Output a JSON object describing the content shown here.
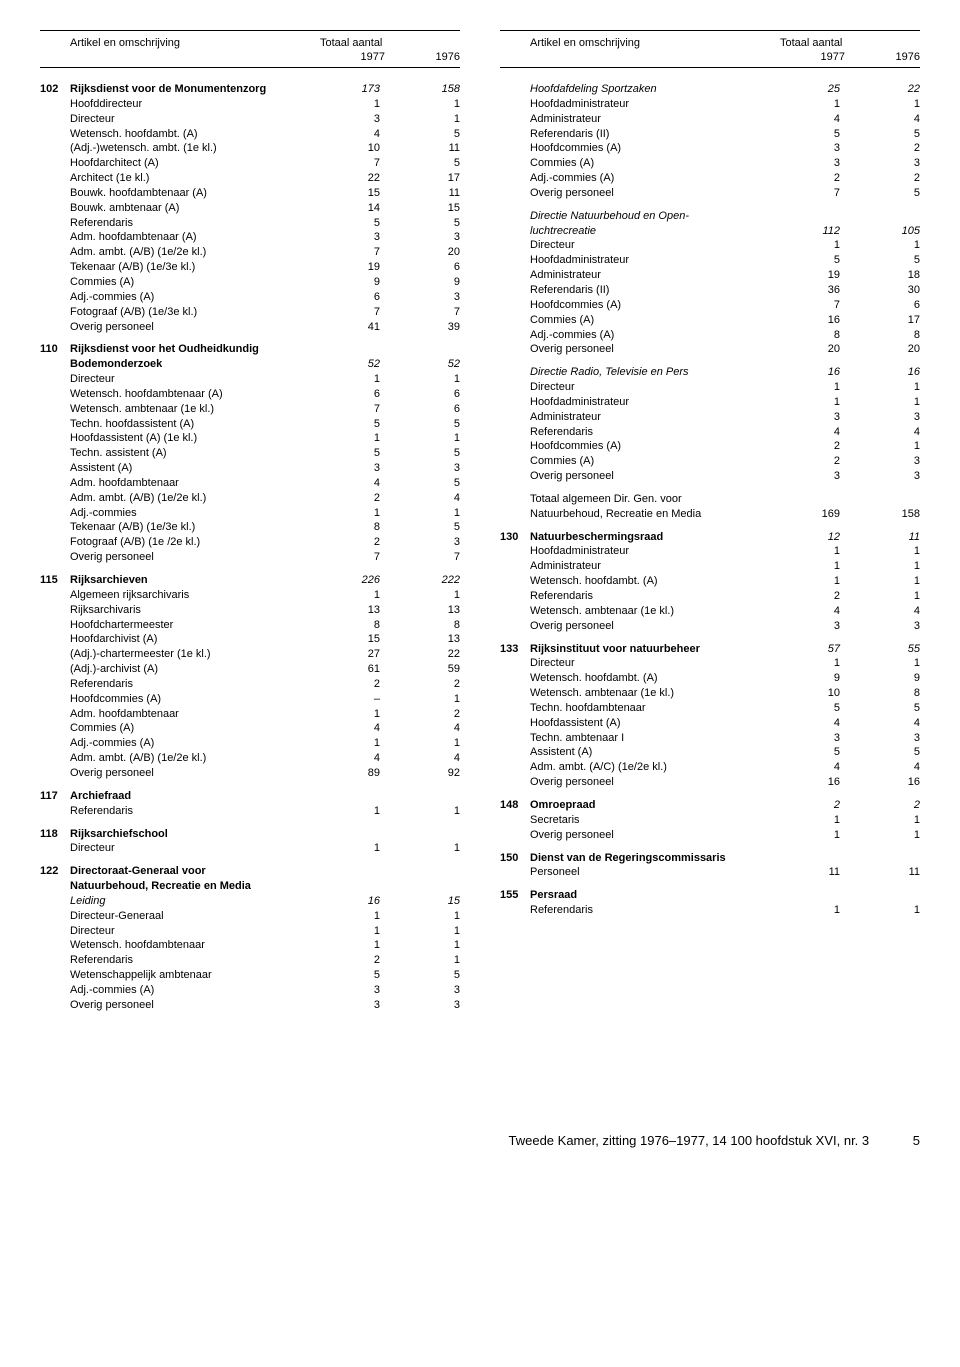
{
  "header": {
    "col_title": "Artikel en omschrijving",
    "totaal_title": "Totaal aantal",
    "year1": "1977",
    "year2": "1976"
  },
  "left": [
    {
      "type": "section",
      "code": "102",
      "label": "Rijksdienst voor de Monumentenzorg",
      "italic": true,
      "v1": "173",
      "v2": "158"
    },
    {
      "type": "row",
      "label": "Hoofddirecteur",
      "v1": "1",
      "v2": "1"
    },
    {
      "type": "row",
      "label": "Directeur",
      "v1": "3",
      "v2": "1"
    },
    {
      "type": "row",
      "label": "Wetensch. hoofdambt. (A)",
      "v1": "4",
      "v2": "5"
    },
    {
      "type": "row",
      "label": "(Adj.-)wetensch. ambt. (1e kl.)",
      "v1": "10",
      "v2": "11"
    },
    {
      "type": "row",
      "label": "Hoofdarchitect (A)",
      "v1": "7",
      "v2": "5"
    },
    {
      "type": "row",
      "label": "Architect (1e kl.)",
      "v1": "22",
      "v2": "17"
    },
    {
      "type": "row",
      "label": "Bouwk. hoofdambtenaar (A)",
      "v1": "15",
      "v2": "11"
    },
    {
      "type": "row",
      "label": "Bouwk. ambtenaar (A)",
      "v1": "14",
      "v2": "15"
    },
    {
      "type": "row",
      "label": "Referendaris",
      "v1": "5",
      "v2": "5"
    },
    {
      "type": "row",
      "label": "Adm. hoofdambtenaar (A)",
      "v1": "3",
      "v2": "3"
    },
    {
      "type": "row",
      "label": "Adm. ambt. (A/B) (1e/2e kl.)",
      "v1": "7",
      "v2": "20"
    },
    {
      "type": "row",
      "label": "Tekenaar (A/B) (1e/3e kl.)",
      "v1": "19",
      "v2": "6"
    },
    {
      "type": "row",
      "label": "Commies (A)",
      "v1": "9",
      "v2": "9"
    },
    {
      "type": "row",
      "label": "Adj.-commies (A)",
      "v1": "6",
      "v2": "3"
    },
    {
      "type": "row",
      "label": "Fotograaf (A/B) (1e/3e kl.)",
      "v1": "7",
      "v2": "7"
    },
    {
      "type": "row",
      "label": "Overig personeel",
      "v1": "41",
      "v2": "39"
    },
    {
      "type": "spacer"
    },
    {
      "type": "section",
      "code": "110",
      "label": "Rijksdienst voor het Oudheidkundig",
      "v1": "",
      "v2": ""
    },
    {
      "type": "section",
      "code": "",
      "label": "Bodemonderzoek",
      "italic": true,
      "v1": "52",
      "v2": "52"
    },
    {
      "type": "row",
      "label": "Directeur",
      "v1": "1",
      "v2": "1"
    },
    {
      "type": "row",
      "label": "Wetensch. hoofdambtenaar (A)",
      "v1": "6",
      "v2": "6"
    },
    {
      "type": "row",
      "label": "Wetensch. ambtenaar (1e kl.)",
      "v1": "7",
      "v2": "6"
    },
    {
      "type": "row",
      "label": "Techn. hoofdassistent (A)",
      "v1": "5",
      "v2": "5"
    },
    {
      "type": "row",
      "label": "Hoofdassistent (A) (1e kl.)",
      "v1": "1",
      "v2": "1"
    },
    {
      "type": "row",
      "label": "Techn. assistent (A)",
      "v1": "5",
      "v2": "5"
    },
    {
      "type": "row",
      "label": "Assistent (A)",
      "v1": "3",
      "v2": "3"
    },
    {
      "type": "row",
      "label": "Adm. hoofdambtenaar",
      "v1": "4",
      "v2": "5"
    },
    {
      "type": "row",
      "label": "Adm. ambt. (A/B) (1e/2e kl.)",
      "v1": "2",
      "v2": "4"
    },
    {
      "type": "row",
      "label": "Adj.-commies",
      "v1": "1",
      "v2": "1"
    },
    {
      "type": "row",
      "label": "Tekenaar (A/B) (1e/3e kl.)",
      "v1": "8",
      "v2": "5"
    },
    {
      "type": "row",
      "label": "Fotograaf (A/B) (1e /2e kl.)",
      "v1": "2",
      "v2": "3"
    },
    {
      "type": "row",
      "label": "Overig personeel",
      "v1": "7",
      "v2": "7"
    },
    {
      "type": "spacer"
    },
    {
      "type": "section",
      "code": "115",
      "label": "Rijksarchieven",
      "italic": true,
      "v1": "226",
      "v2": "222"
    },
    {
      "type": "row",
      "label": "Algemeen rijksarchivaris",
      "v1": "1",
      "v2": "1"
    },
    {
      "type": "row",
      "label": "Rijksarchivaris",
      "v1": "13",
      "v2": "13"
    },
    {
      "type": "row",
      "label": "Hoofdchartermeester",
      "v1": "8",
      "v2": "8"
    },
    {
      "type": "row",
      "label": "Hoofdarchivist (A)",
      "v1": "15",
      "v2": "13"
    },
    {
      "type": "row",
      "label": "(Adj.)-chartermeester (1e kl.)",
      "v1": "27",
      "v2": "22"
    },
    {
      "type": "row",
      "label": "(Adj.)-archivist (A)",
      "v1": "61",
      "v2": "59"
    },
    {
      "type": "row",
      "label": "Referendaris",
      "v1": "2",
      "v2": "2"
    },
    {
      "type": "row",
      "label": "Hoofdcommies (A)",
      "v1": "–",
      "v2": "1"
    },
    {
      "type": "row",
      "label": "Adm. hoofdambtenaar",
      "v1": "1",
      "v2": "2"
    },
    {
      "type": "row",
      "label": "Commies (A)",
      "v1": "4",
      "v2": "4"
    },
    {
      "type": "row",
      "label": "Adj.-commies (A)",
      "v1": "1",
      "v2": "1"
    },
    {
      "type": "row",
      "label": "Adm. ambt. (A/B) (1e/2e kl.)",
      "v1": "4",
      "v2": "4"
    },
    {
      "type": "row",
      "label": "Overig personeel",
      "v1": "89",
      "v2": "92"
    },
    {
      "type": "spacer"
    },
    {
      "type": "section",
      "code": "117",
      "label": "Archiefraad",
      "v1": "",
      "v2": ""
    },
    {
      "type": "row",
      "label": "Referendaris",
      "v1": "1",
      "v2": "1"
    },
    {
      "type": "spacer"
    },
    {
      "type": "section",
      "code": "118",
      "label": "Rijksarchiefschool",
      "v1": "",
      "v2": ""
    },
    {
      "type": "row",
      "label": "Directeur",
      "v1": "1",
      "v2": "1"
    },
    {
      "type": "spacer"
    },
    {
      "type": "section",
      "code": "122",
      "label": "Directoraat-Generaal voor",
      "v1": "",
      "v2": ""
    },
    {
      "type": "section",
      "code": "",
      "label": "Natuurbehoud, Recreatie en Media",
      "v1": "",
      "v2": ""
    },
    {
      "type": "subitalic",
      "label": "Leiding",
      "v1": "16",
      "v2": "15"
    },
    {
      "type": "row",
      "label": "Directeur-Generaal",
      "v1": "1",
      "v2": "1"
    },
    {
      "type": "row",
      "label": "Directeur",
      "v1": "1",
      "v2": "1"
    },
    {
      "type": "row",
      "label": "Wetensch. hoofdambtenaar",
      "v1": "1",
      "v2": "1"
    },
    {
      "type": "row",
      "label": "Referendaris",
      "v1": "2",
      "v2": "1"
    },
    {
      "type": "row",
      "label": "Wetenschappelijk ambtenaar",
      "v1": "5",
      "v2": "5"
    },
    {
      "type": "row",
      "label": "Adj.-commies (A)",
      "v1": "3",
      "v2": "3"
    },
    {
      "type": "row",
      "label": "Overig personeel",
      "v1": "3",
      "v2": "3"
    }
  ],
  "right": [
    {
      "type": "subitalic",
      "label": "Hoofdafdeling Sportzaken",
      "v1": "25",
      "v2": "22"
    },
    {
      "type": "row",
      "label": "Hoofdadministrateur",
      "v1": "1",
      "v2": "1"
    },
    {
      "type": "row",
      "label": "Administrateur",
      "v1": "4",
      "v2": "4"
    },
    {
      "type": "row",
      "label": "Referendaris (II)",
      "v1": "5",
      "v2": "5"
    },
    {
      "type": "row",
      "label": "Hoofdcommies (A)",
      "v1": "3",
      "v2": "2"
    },
    {
      "type": "row",
      "label": "Commies (A)",
      "v1": "3",
      "v2": "3"
    },
    {
      "type": "row",
      "label": "Adj.-commies (A)",
      "v1": "2",
      "v2": "2"
    },
    {
      "type": "row",
      "label": "Overig personeel",
      "v1": "7",
      "v2": "5"
    },
    {
      "type": "spacer"
    },
    {
      "type": "subitalic",
      "label": "Directie Natuurbehoud en Open-",
      "v1": "",
      "v2": ""
    },
    {
      "type": "subitalic",
      "label": "luchtrecreatie",
      "v1": "112",
      "v2": "105"
    },
    {
      "type": "row",
      "label": "Directeur",
      "v1": "1",
      "v2": "1"
    },
    {
      "type": "row",
      "label": "Hoofdadministrateur",
      "v1": "5",
      "v2": "5"
    },
    {
      "type": "row",
      "label": "Administrateur",
      "v1": "19",
      "v2": "18"
    },
    {
      "type": "row",
      "label": "Referendaris (II)",
      "v1": "36",
      "v2": "30"
    },
    {
      "type": "row",
      "label": "Hoofdcommies (A)",
      "v1": "7",
      "v2": "6"
    },
    {
      "type": "row",
      "label": "Commies (A)",
      "v1": "16",
      "v2": "17"
    },
    {
      "type": "row",
      "label": "Adj.-commies (A)",
      "v1": "8",
      "v2": "8"
    },
    {
      "type": "row",
      "label": "Overig personeel",
      "v1": "20",
      "v2": "20"
    },
    {
      "type": "spacer"
    },
    {
      "type": "subitalic",
      "label": "Directie Radio, Televisie en Pers",
      "v1": "16",
      "v2": "16"
    },
    {
      "type": "row",
      "label": "Directeur",
      "v1": "1",
      "v2": "1"
    },
    {
      "type": "row",
      "label": "Hoofdadministrateur",
      "v1": "1",
      "v2": "1"
    },
    {
      "type": "row",
      "label": "Administrateur",
      "v1": "3",
      "v2": "3"
    },
    {
      "type": "row",
      "label": "Referendaris",
      "v1": "4",
      "v2": "4"
    },
    {
      "type": "row",
      "label": "Hoofdcommies (A)",
      "v1": "2",
      "v2": "1"
    },
    {
      "type": "row",
      "label": "Commies (A)",
      "v1": "2",
      "v2": "3"
    },
    {
      "type": "row",
      "label": "Overig personeel",
      "v1": "3",
      "v2": "3"
    },
    {
      "type": "spacer"
    },
    {
      "type": "row",
      "label": "Totaal algemeen Dir. Gen. voor",
      "v1": "",
      "v2": ""
    },
    {
      "type": "row",
      "label": "Natuurbehoud, Recreatie en Media",
      "v1": "169",
      "v2": "158"
    },
    {
      "type": "spacer"
    },
    {
      "type": "section",
      "code": "130",
      "label": "Natuurbeschermingsraad",
      "italic": true,
      "v1": "12",
      "v2": "11"
    },
    {
      "type": "row",
      "label": "Hoofdadministrateur",
      "v1": "1",
      "v2": "1"
    },
    {
      "type": "row",
      "label": "Administrateur",
      "v1": "1",
      "v2": "1"
    },
    {
      "type": "row",
      "label": "Wetensch. hoofdambt. (A)",
      "v1": "1",
      "v2": "1"
    },
    {
      "type": "row",
      "label": "Referendaris",
      "v1": "2",
      "v2": "1"
    },
    {
      "type": "row",
      "label": "Wetensch. ambtenaar (1e kl.)",
      "v1": "4",
      "v2": "4"
    },
    {
      "type": "row",
      "label": "Overig personeel",
      "v1": "3",
      "v2": "3"
    },
    {
      "type": "spacer"
    },
    {
      "type": "section",
      "code": "133",
      "label": "Rijksinstituut voor natuurbeheer",
      "italic": true,
      "v1": "57",
      "v2": "55"
    },
    {
      "type": "row",
      "label": "Directeur",
      "v1": "1",
      "v2": "1"
    },
    {
      "type": "row",
      "label": "Wetensch. hoofdambt. (A)",
      "v1": "9",
      "v2": "9"
    },
    {
      "type": "row",
      "label": "Wetensch. ambtenaar (1e kl.)",
      "v1": "10",
      "v2": "8"
    },
    {
      "type": "row",
      "label": "Techn. hoofdambtenaar",
      "v1": "5",
      "v2": "5"
    },
    {
      "type": "row",
      "label": "Hoofdassistent (A)",
      "v1": "4",
      "v2": "4"
    },
    {
      "type": "row",
      "label": "Techn. ambtenaar I",
      "v1": "3",
      "v2": "3"
    },
    {
      "type": "row",
      "label": "Assistent (A)",
      "v1": "5",
      "v2": "5"
    },
    {
      "type": "row",
      "label": "Adm. ambt. (A/C) (1e/2e kl.)",
      "v1": "4",
      "v2": "4"
    },
    {
      "type": "row",
      "label": "Overig personeel",
      "v1": "16",
      "v2": "16"
    },
    {
      "type": "spacer"
    },
    {
      "type": "section",
      "code": "148",
      "label": "Omroepraad",
      "italic": true,
      "v1": "2",
      "v2": "2"
    },
    {
      "type": "row",
      "label": "Secretaris",
      "v1": "1",
      "v2": "1"
    },
    {
      "type": "row",
      "label": "Overig personeel",
      "v1": "1",
      "v2": "1"
    },
    {
      "type": "spacer"
    },
    {
      "type": "section",
      "code": "150",
      "label": "Dienst van de Regeringscommissaris",
      "v1": "",
      "v2": ""
    },
    {
      "type": "row",
      "label": "Personeel",
      "v1": "11",
      "v2": "11"
    },
    {
      "type": "spacer"
    },
    {
      "type": "section",
      "code": "155",
      "label": "Persraad",
      "v1": "",
      "v2": ""
    },
    {
      "type": "row",
      "label": "Referendaris",
      "v1": "1",
      "v2": "1"
    }
  ],
  "footer": {
    "text": "Tweede Kamer, zitting 1976–1977, 14 100 hoofdstuk XVI, nr. 3",
    "page": "5"
  }
}
